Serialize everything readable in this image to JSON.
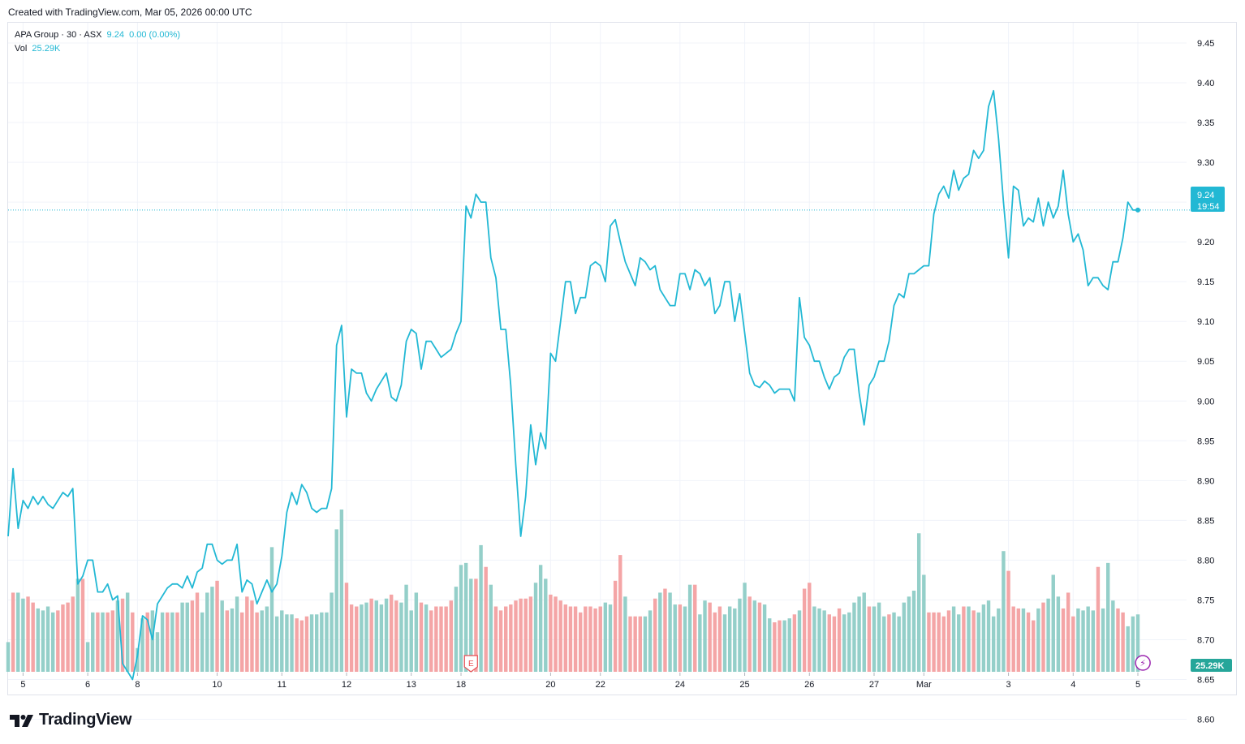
{
  "header": {
    "created": "Created with TradingView.com, Mar 05, 2026 00:00 UTC"
  },
  "legend": {
    "symbol": "APA Group · 30 · ASX",
    "last": "9.24",
    "change": "0.00 (0.00%)",
    "vol_label": "Vol",
    "vol_value": "25.29K"
  },
  "badges": {
    "price": "9.24",
    "countdown": "19:54",
    "volume": "25.29K"
  },
  "colors": {
    "line": "#22b8d4",
    "vol_up": "#94cfc9",
    "vol_down": "#f4a5a6",
    "badge": "#22b8d4",
    "volume_badge": "#26a69a",
    "earnings": "#e84d53",
    "dividend": "#9c27b0"
  },
  "icons": {
    "earnings": "E",
    "dividend": "⚡"
  },
  "logo": {
    "text": "TradingView"
  },
  "chart_data": {
    "type": "line",
    "y_ticks": [
      "9.45",
      "9.40",
      "9.35",
      "9.30",
      "9.25",
      "9.20",
      "9.15",
      "9.10",
      "9.05",
      "9.00",
      "8.95",
      "8.90",
      "8.85",
      "8.80",
      "8.75",
      "8.70",
      "8.65",
      "8.60"
    ],
    "ylim": [
      8.575,
      9.475
    ],
    "last_price": 9.24,
    "x_ticks": [
      {
        "label": "5",
        "i": 3
      },
      {
        "label": "6",
        "i": 16
      },
      {
        "label": "8",
        "i": 26
      },
      {
        "label": "10",
        "i": 42
      },
      {
        "label": "11",
        "i": 55
      },
      {
        "label": "12",
        "i": 68
      },
      {
        "label": "13",
        "i": 81
      },
      {
        "label": "18",
        "i": 91
      },
      {
        "label": "20",
        "i": 109
      },
      {
        "label": "22",
        "i": 119
      },
      {
        "label": "24",
        "i": 135
      },
      {
        "label": "25",
        "i": 148
      },
      {
        "label": "26",
        "i": 161
      },
      {
        "label": "27",
        "i": 174
      },
      {
        "label": "Mar",
        "i": 184
      },
      {
        "label": "3",
        "i": 201
      },
      {
        "label": "4",
        "i": 214
      },
      {
        "label": "5",
        "i": 227
      }
    ],
    "series": [
      {
        "values": [
          8.83,
          8.915,
          8.84,
          8.875,
          8.865,
          8.88,
          8.87,
          8.88,
          8.87,
          8.865,
          8.875,
          8.885,
          8.88,
          8.89,
          8.77,
          8.78,
          8.8,
          8.8,
          8.76,
          8.76,
          8.77,
          8.75,
          8.755,
          8.67,
          8.66,
          8.65,
          8.68,
          8.73,
          8.725,
          8.7,
          8.745,
          8.755,
          8.765,
          8.77,
          8.77,
          8.765,
          8.78,
          8.765,
          8.785,
          8.79,
          8.82,
          8.82,
          8.8,
          8.795,
          8.8,
          8.8,
          8.82,
          8.76,
          8.775,
          8.77,
          8.745,
          8.76,
          8.775,
          8.76,
          8.77,
          8.805,
          8.86,
          8.885,
          8.87,
          8.895,
          8.885,
          8.865,
          8.86,
          8.865,
          8.865,
          8.89,
          9.07,
          9.095,
          8.98,
          9.04,
          9.035,
          9.035,
          9.01,
          9.0,
          9.015,
          9.025,
          9.035,
          9.005,
          9.0,
          9.02,
          9.075,
          9.09,
          9.085,
          9.04,
          9.075,
          9.075,
          9.065,
          9.055,
          9.06,
          9.065,
          9.085,
          9.1,
          9.245,
          9.23,
          9.26,
          9.25,
          9.25,
          9.18,
          9.155,
          9.09,
          9.09,
          9.02,
          8.92,
          8.83,
          8.88,
          8.97,
          8.92,
          8.96,
          8.94,
          9.06,
          9.05,
          9.1,
          9.15,
          9.15,
          9.11,
          9.13,
          9.13,
          9.17,
          9.175,
          9.17,
          9.15,
          9.22,
          9.228,
          9.2,
          9.175,
          9.16,
          9.145,
          9.18,
          9.175,
          9.165,
          9.17,
          9.14,
          9.13,
          9.12,
          9.12,
          9.16,
          9.16,
          9.14,
          9.165,
          9.16,
          9.145,
          9.155,
          9.11,
          9.12,
          9.15,
          9.15,
          9.1,
          9.135,
          9.085,
          9.035,
          9.02,
          9.017,
          9.025,
          9.02,
          9.01,
          9.015,
          9.015,
          9.015,
          9.0,
          9.13,
          9.08,
          9.07,
          9.05,
          9.05,
          9.03,
          9.015,
          9.03,
          9.035,
          9.055,
          9.065,
          9.065,
          9.01,
          8.97,
          9.02,
          9.03,
          9.05,
          9.05,
          9.075,
          9.12,
          9.135,
          9.13,
          9.16,
          9.16,
          9.165,
          9.17,
          9.17,
          9.235,
          9.26,
          9.27,
          9.255,
          9.29,
          9.265,
          9.28,
          9.285,
          9.315,
          9.305,
          9.315,
          9.37,
          9.39,
          9.33,
          9.25,
          9.18,
          9.27,
          9.265,
          9.22,
          9.23,
          9.225,
          9.255,
          9.22,
          9.25,
          9.23,
          9.245,
          9.29,
          9.235,
          9.2,
          9.21,
          9.19,
          9.145,
          9.155,
          9.155,
          9.145,
          9.14,
          9.175,
          9.175,
          9.205,
          9.25,
          9.24,
          9.24
        ]
      }
    ],
    "volume": [
      [
        15,
        0
      ],
      [
        40,
        1
      ],
      [
        40,
        0
      ],
      [
        37,
        0
      ],
      [
        38,
        1
      ],
      [
        35,
        1
      ],
      [
        32,
        0
      ],
      [
        31,
        0
      ],
      [
        33,
        0
      ],
      [
        30,
        0
      ],
      [
        31,
        1
      ],
      [
        34,
        1
      ],
      [
        35,
        1
      ],
      [
        38,
        1
      ],
      [
        47,
        0
      ],
      [
        47,
        1
      ],
      [
        15,
        0
      ],
      [
        30,
        0
      ],
      [
        30,
        1
      ],
      [
        30,
        0
      ],
      [
        30,
        1
      ],
      [
        31,
        1
      ],
      [
        36,
        0
      ],
      [
        37,
        1
      ],
      [
        40,
        0
      ],
      [
        30,
        1
      ],
      [
        12,
        0
      ],
      [
        27,
        0
      ],
      [
        30,
        1
      ],
      [
        31,
        0
      ],
      [
        20,
        0
      ],
      [
        30,
        0
      ],
      [
        30,
        1
      ],
      [
        30,
        0
      ],
      [
        30,
        1
      ],
      [
        35,
        0
      ],
      [
        35,
        0
      ],
      [
        36,
        1
      ],
      [
        40,
        1
      ],
      [
        30,
        0
      ],
      [
        40,
        0
      ],
      [
        43,
        0
      ],
      [
        46,
        1
      ],
      [
        36,
        0
      ],
      [
        31,
        1
      ],
      [
        32,
        0
      ],
      [
        38,
        0
      ],
      [
        30,
        1
      ],
      [
        38,
        1
      ],
      [
        36,
        1
      ],
      [
        30,
        1
      ],
      [
        31,
        0
      ],
      [
        33,
        0
      ],
      [
        63,
        0
      ],
      [
        28,
        0
      ],
      [
        31,
        0
      ],
      [
        29,
        0
      ],
      [
        29,
        0
      ],
      [
        27,
        1
      ],
      [
        26,
        1
      ],
      [
        28,
        1
      ],
      [
        29,
        0
      ],
      [
        29,
        0
      ],
      [
        30,
        0
      ],
      [
        30,
        0
      ],
      [
        40,
        0
      ],
      [
        72,
        0
      ],
      [
        82,
        0
      ],
      [
        45,
        1
      ],
      [
        34,
        1
      ],
      [
        33,
        1
      ],
      [
        34,
        0
      ],
      [
        35,
        0
      ],
      [
        37,
        1
      ],
      [
        36,
        0
      ],
      [
        34,
        0
      ],
      [
        37,
        0
      ],
      [
        39,
        1
      ],
      [
        36,
        1
      ],
      [
        35,
        0
      ],
      [
        44,
        0
      ],
      [
        31,
        0
      ],
      [
        40,
        0
      ],
      [
        35,
        1
      ],
      [
        34,
        0
      ],
      [
        31,
        1
      ],
      [
        33,
        1
      ],
      [
        33,
        1
      ],
      [
        33,
        1
      ],
      [
        36,
        1
      ],
      [
        43,
        0
      ],
      [
        54,
        0
      ],
      [
        55,
        0
      ],
      [
        47,
        0
      ],
      [
        47,
        1
      ],
      [
        64,
        0
      ],
      [
        53,
        1
      ],
      [
        44,
        0
      ],
      [
        33,
        1
      ],
      [
        31,
        1
      ],
      [
        33,
        1
      ],
      [
        34,
        1
      ],
      [
        36,
        1
      ],
      [
        37,
        1
      ],
      [
        37,
        1
      ],
      [
        38,
        1
      ],
      [
        45,
        0
      ],
      [
        54,
        0
      ],
      [
        47,
        0
      ],
      [
        39,
        1
      ],
      [
        38,
        1
      ],
      [
        36,
        1
      ],
      [
        34,
        1
      ],
      [
        33,
        1
      ],
      [
        33,
        1
      ],
      [
        30,
        1
      ],
      [
        33,
        1
      ],
      [
        33,
        1
      ],
      [
        32,
        1
      ],
      [
        33,
        1
      ],
      [
        35,
        0
      ],
      [
        34,
        0
      ],
      [
        46,
        1
      ],
      [
        59,
        1
      ],
      [
        38,
        0
      ],
      [
        28,
        1
      ],
      [
        28,
        1
      ],
      [
        28,
        1
      ],
      [
        28,
        0
      ],
      [
        31,
        0
      ],
      [
        37,
        1
      ],
      [
        40,
        0
      ],
      [
        42,
        1
      ],
      [
        40,
        0
      ],
      [
        34,
        0
      ],
      [
        34,
        1
      ],
      [
        33,
        0
      ],
      [
        44,
        0
      ],
      [
        44,
        1
      ],
      [
        29,
        0
      ],
      [
        36,
        0
      ],
      [
        35,
        1
      ],
      [
        30,
        1
      ],
      [
        33,
        1
      ],
      [
        29,
        0
      ],
      [
        33,
        0
      ],
      [
        32,
        0
      ],
      [
        37,
        0
      ],
      [
        45,
        0
      ],
      [
        38,
        1
      ],
      [
        36,
        0
      ],
      [
        35,
        1
      ],
      [
        34,
        0
      ],
      [
        27,
        0
      ],
      [
        25,
        1
      ],
      [
        26,
        1
      ],
      [
        26,
        0
      ],
      [
        27,
        0
      ],
      [
        29,
        1
      ],
      [
        31,
        0
      ],
      [
        42,
        1
      ],
      [
        45,
        1
      ],
      [
        33,
        0
      ],
      [
        32,
        0
      ],
      [
        31,
        0
      ],
      [
        29,
        1
      ],
      [
        28,
        1
      ],
      [
        32,
        1
      ],
      [
        29,
        0
      ],
      [
        30,
        0
      ],
      [
        35,
        0
      ],
      [
        38,
        0
      ],
      [
        40,
        0
      ],
      [
        33,
        1
      ],
      [
        33,
        0
      ],
      [
        35,
        0
      ],
      [
        28,
        0
      ],
      [
        29,
        1
      ],
      [
        30,
        0
      ],
      [
        28,
        0
      ],
      [
        35,
        0
      ],
      [
        38,
        0
      ],
      [
        41,
        0
      ],
      [
        70,
        0
      ],
      [
        49,
        0
      ],
      [
        30,
        1
      ],
      [
        30,
        1
      ],
      [
        30,
        1
      ],
      [
        28,
        1
      ],
      [
        31,
        1
      ],
      [
        33,
        0
      ],
      [
        29,
        0
      ],
      [
        33,
        1
      ],
      [
        33,
        0
      ],
      [
        31,
        1
      ],
      [
        30,
        0
      ],
      [
        34,
        0
      ],
      [
        36,
        0
      ],
      [
        28,
        0
      ],
      [
        32,
        0
      ],
      [
        61,
        0
      ],
      [
        51,
        1
      ],
      [
        33,
        1
      ],
      [
        32,
        1
      ],
      [
        32,
        0
      ],
      [
        30,
        1
      ],
      [
        26,
        1
      ],
      [
        32,
        0
      ],
      [
        35,
        1
      ],
      [
        37,
        0
      ],
      [
        49,
        0
      ],
      [
        38,
        0
      ],
      [
        32,
        1
      ],
      [
        40,
        1
      ],
      [
        28,
        1
      ],
      [
        32,
        0
      ],
      [
        31,
        0
      ],
      [
        33,
        0
      ],
      [
        31,
        0
      ],
      [
        53,
        1
      ],
      [
        32,
        0
      ],
      [
        55,
        0
      ],
      [
        36,
        0
      ],
      [
        32,
        1
      ],
      [
        30,
        1
      ],
      [
        23,
        0
      ],
      [
        28,
        0
      ],
      [
        29,
        0
      ]
    ],
    "volume_max": 82,
    "markers": [
      {
        "type": "earnings",
        "i": 93
      },
      {
        "type": "dividend",
        "i": 228
      }
    ],
    "grid": true
  }
}
